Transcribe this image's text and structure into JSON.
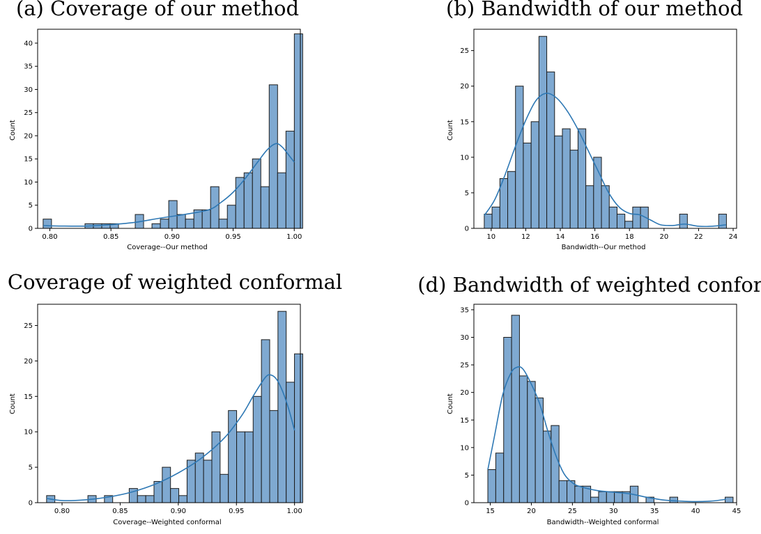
{
  "chart_data": [
    {
      "id": "a",
      "type": "bar",
      "title": "(a) Coverage of our method",
      "xlabel": "Coverage--Our method",
      "ylabel": "Count",
      "xlim": [
        0.79,
        1.005
      ],
      "ylim": [
        0,
        43
      ],
      "xticks": [
        0.8,
        0.85,
        0.9,
        0.95,
        1.0
      ],
      "xtick_labels": [
        "0.80",
        "0.85",
        "0.90",
        "0.95",
        "1.00"
      ],
      "yticks": [
        0,
        5,
        10,
        15,
        20,
        25,
        30,
        35,
        40
      ],
      "bins": {
        "start": 0.7945,
        "width": 0.006852
      },
      "values": [
        2,
        0,
        0,
        0,
        0,
        1,
        1,
        1,
        1,
        0,
        0,
        3,
        0,
        1,
        2,
        6,
        3,
        2,
        4,
        4,
        9,
        2,
        5,
        11,
        12,
        15,
        9,
        31,
        12,
        21,
        42
      ],
      "kde": [
        [
          0.7945,
          0.6
        ],
        [
          0.81,
          0.5
        ],
        [
          0.83,
          0.5
        ],
        [
          0.85,
          0.8
        ],
        [
          0.87,
          1.3
        ],
        [
          0.89,
          2.2
        ],
        [
          0.91,
          3.0
        ],
        [
          0.93,
          4.0
        ],
        [
          0.94,
          5.6
        ],
        [
          0.95,
          7.8
        ],
        [
          0.96,
          10.8
        ],
        [
          0.97,
          14.3
        ],
        [
          0.978,
          17.0
        ],
        [
          0.985,
          18.3
        ],
        [
          0.99,
          17.6
        ],
        [
          0.995,
          16.0
        ],
        [
          1.0,
          14.3
        ]
      ]
    },
    {
      "id": "b",
      "type": "bar",
      "title": "(b) Bandwidth of our method",
      "xlabel": "Bandwidth--Our method",
      "ylabel": "Count",
      "xlim": [
        9.0,
        24.2
      ],
      "ylim": [
        0,
        28
      ],
      "xticks": [
        10,
        12,
        14,
        16,
        18,
        20,
        22,
        24
      ],
      "xtick_labels": [
        "10",
        "12",
        "14",
        "16",
        "18",
        "20",
        "22",
        "24"
      ],
      "yticks": [
        0,
        5,
        10,
        15,
        20,
        25
      ],
      "bins": {
        "start": 9.6,
        "width": 0.452
      },
      "values": [
        2,
        3,
        7,
        8,
        20,
        12,
        15,
        27,
        22,
        13,
        14,
        11,
        14,
        6,
        10,
        6,
        3,
        2,
        1,
        3,
        3,
        0,
        0,
        0,
        0,
        2,
        0,
        0,
        0,
        0,
        2
      ],
      "kde": [
        [
          9.6,
          1.8
        ],
        [
          10.2,
          4.0
        ],
        [
          10.8,
          7.5
        ],
        [
          11.4,
          11.5
        ],
        [
          12.0,
          15.2
        ],
        [
          12.6,
          18.0
        ],
        [
          13.2,
          19.0
        ],
        [
          13.8,
          18.3
        ],
        [
          14.4,
          16.5
        ],
        [
          15.0,
          14.0
        ],
        [
          15.6,
          11.0
        ],
        [
          16.2,
          8.0
        ],
        [
          16.8,
          5.0
        ],
        [
          17.4,
          3.0
        ],
        [
          18.0,
          2.1
        ],
        [
          18.6,
          1.9
        ],
        [
          19.2,
          1.2
        ],
        [
          19.8,
          0.5
        ],
        [
          20.5,
          0.4
        ],
        [
          21.2,
          0.6
        ],
        [
          22.0,
          0.3
        ],
        [
          22.8,
          0.3
        ],
        [
          23.6,
          0.5
        ]
      ]
    },
    {
      "id": "c",
      "type": "bar",
      "title": "(c) Coverage of weighted conformal",
      "xlabel": "Coverage--Weighted conformal",
      "ylabel": "Count",
      "xlim": [
        0.779,
        1.005
      ],
      "ylim": [
        0,
        28
      ],
      "xticks": [
        0.8,
        0.85,
        0.9,
        0.95,
        1.0
      ],
      "xtick_labels": [
        "0.80",
        "0.85",
        "0.90",
        "0.95",
        "1.00"
      ],
      "yticks": [
        0,
        5,
        10,
        15,
        20,
        25
      ],
      "bins": {
        "start": 0.7867,
        "width": 0.007108
      },
      "values": [
        1,
        0,
        0,
        0,
        0,
        1,
        0,
        1,
        0,
        0,
        2,
        1,
        1,
        3,
        5,
        2,
        1,
        6,
        7,
        6,
        10,
        4,
        13,
        10,
        10,
        15,
        23,
        13,
        27,
        17,
        21
      ],
      "kde": [
        [
          0.7867,
          0.6
        ],
        [
          0.8,
          0.3
        ],
        [
          0.82,
          0.4
        ],
        [
          0.84,
          0.8
        ],
        [
          0.86,
          1.5
        ],
        [
          0.88,
          2.6
        ],
        [
          0.9,
          4.2
        ],
        [
          0.92,
          6.3
        ],
        [
          0.94,
          9.2
        ],
        [
          0.955,
          12.4
        ],
        [
          0.965,
          15.2
        ],
        [
          0.975,
          17.7
        ],
        [
          0.98,
          18.0
        ],
        [
          0.985,
          17.3
        ],
        [
          0.99,
          15.6
        ],
        [
          0.995,
          13.2
        ],
        [
          1.0,
          10.2
        ]
      ]
    },
    {
      "id": "d",
      "type": "bar",
      "title": "(d) Bandwidth of weighted conformal",
      "xlabel": "Bandwidth--Weighted conformal",
      "ylabel": "Count",
      "xlim": [
        13.0,
        45.0
      ],
      "ylim": [
        0,
        36
      ],
      "xticks": [
        15,
        20,
        25,
        30,
        35,
        40,
        45
      ],
      "xtick_labels": [
        "15",
        "20",
        "25",
        "30",
        "35",
        "40",
        "45"
      ],
      "yticks": [
        0,
        5,
        10,
        15,
        20,
        25,
        30,
        35
      ],
      "bins": {
        "start": 14.7,
        "width": 0.9635
      },
      "values": [
        6,
        9,
        30,
        34,
        23,
        22,
        19,
        13,
        14,
        4,
        4,
        3,
        3,
        1,
        2,
        2,
        2,
        2,
        3,
        0,
        1,
        0,
        0,
        1,
        0,
        0,
        0,
        0,
        0,
        0,
        1
      ],
      "kde": [
        [
          14.7,
          6.0
        ],
        [
          15.5,
          12.0
        ],
        [
          16.5,
          19.5
        ],
        [
          17.5,
          23.5
        ],
        [
          18.3,
          24.6
        ],
        [
          19.0,
          24.2
        ],
        [
          20.0,
          21.5
        ],
        [
          21.0,
          18.0
        ],
        [
          22.0,
          13.0
        ],
        [
          23.0,
          8.5
        ],
        [
          24.0,
          5.2
        ],
        [
          25.0,
          3.6
        ],
        [
          26.0,
          2.9
        ],
        [
          28.0,
          2.2
        ],
        [
          30.0,
          1.9
        ],
        [
          32.0,
          1.6
        ],
        [
          34.0,
          1.0
        ],
        [
          36.0,
          0.5
        ],
        [
          38.0,
          0.3
        ],
        [
          40.0,
          0.2
        ],
        [
          42.0,
          0.3
        ],
        [
          43.7,
          0.6
        ]
      ]
    }
  ]
}
